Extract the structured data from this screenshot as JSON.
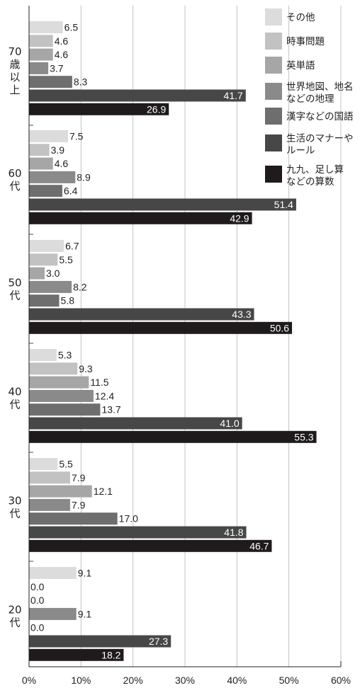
{
  "chart_data": {
    "type": "bar",
    "orientation": "horizontal",
    "xlim": [
      0,
      60
    ],
    "x_ticks": [
      "0%",
      "10%",
      "20%",
      "30%",
      "40%",
      "50%",
      "60%"
    ],
    "grid": true,
    "legend_position": "top-right",
    "groups": [
      {
        "label": [
          "70",
          "歳",
          "以",
          "上"
        ],
        "values": [
          6.5,
          4.6,
          4.6,
          3.7,
          8.3,
          41.7,
          26.9
        ],
        "value_labels": [
          "6.5",
          "4.6",
          "4.6",
          "3.7",
          "8.3",
          "41.7",
          "26.9"
        ]
      },
      {
        "label": [
          "60",
          "代"
        ],
        "values": [
          7.5,
          3.9,
          4.6,
          8.9,
          6.4,
          51.4,
          42.9
        ],
        "value_labels": [
          "7.5",
          "3.9",
          "4.6",
          "8.9",
          "6.4",
          "51.4",
          "42.9"
        ]
      },
      {
        "label": [
          "50",
          "代"
        ],
        "values": [
          6.7,
          5.5,
          3.0,
          8.2,
          5.8,
          43.3,
          50.6
        ],
        "value_labels": [
          "6.7",
          "5.5",
          "3.0",
          "8.2",
          "5.8",
          "43.3",
          "50.6"
        ]
      },
      {
        "label": [
          "40",
          "代"
        ],
        "values": [
          5.3,
          9.3,
          11.5,
          12.4,
          13.7,
          41.0,
          55.3
        ],
        "value_labels": [
          "5.3",
          "9.3",
          "11.5",
          "12.4",
          "13.7",
          "41.0",
          "55.3"
        ]
      },
      {
        "label": [
          "30",
          "代"
        ],
        "values": [
          5.5,
          7.9,
          12.1,
          7.9,
          17.0,
          41.8,
          46.7
        ],
        "value_labels": [
          "5.5",
          "7.9",
          "12.1",
          "7.9",
          "17.0",
          "41.8",
          "46.7"
        ]
      },
      {
        "label": [
          "20",
          "代"
        ],
        "values": [
          9.1,
          0.0,
          0.0,
          9.1,
          0.0,
          27.3,
          18.2
        ],
        "value_labels": [
          "9.1",
          "0.0",
          "0.0",
          "9.1",
          "0.0",
          "27.3",
          "18.2"
        ]
      }
    ],
    "series": [
      {
        "name": [
          "その他"
        ],
        "color": "#dcdcdc"
      },
      {
        "name": [
          "時事問題"
        ],
        "color": "#c2c2c2"
      },
      {
        "name": [
          "英単語"
        ],
        "color": "#a6a6a6"
      },
      {
        "name": [
          "世界地図、地名",
          "などの地理"
        ],
        "color": "#8a8a8a"
      },
      {
        "name": [
          "漢字などの国語"
        ],
        "color": "#6e6e6e"
      },
      {
        "name": [
          "生活のマナーや",
          "ルール"
        ],
        "color": "#474747"
      },
      {
        "name": [
          "九九、足し算",
          "などの算数"
        ],
        "color": "#1f1a1b"
      }
    ]
  }
}
